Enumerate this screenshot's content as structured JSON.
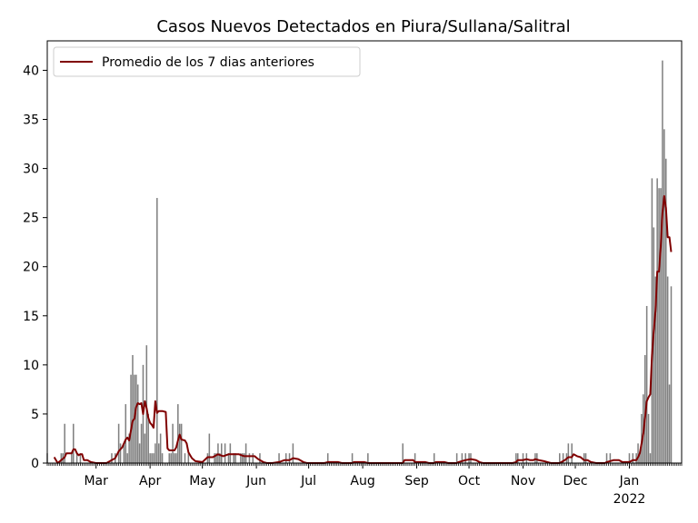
{
  "chart_data": {
    "type": "bar",
    "title": "Casos Nuevos Detectados en Piura/Sullana/Salitral",
    "xlabel": "",
    "ylabel": "",
    "x_start": "2021-02-01",
    "x_end": "2022-01-31",
    "ylim": [
      0,
      43
    ],
    "y_ticks": [
      0,
      5,
      10,
      15,
      20,
      25,
      30,
      35,
      40
    ],
    "x_ticks": [
      {
        "date": "2021-03-01",
        "label": "Mar"
      },
      {
        "date": "2021-04-01",
        "label": "Apr"
      },
      {
        "date": "2021-05-01",
        "label": "May"
      },
      {
        "date": "2021-06-01",
        "label": "Jun"
      },
      {
        "date": "2021-07-01",
        "label": "Jul"
      },
      {
        "date": "2021-08-01",
        "label": "Aug"
      },
      {
        "date": "2021-09-01",
        "label": "Sep"
      },
      {
        "date": "2021-10-01",
        "label": "Oct"
      },
      {
        "date": "2021-11-01",
        "label": "Nov"
      },
      {
        "date": "2021-12-01",
        "label": "Dec"
      },
      {
        "date": "2022-01-01",
        "label": "Jan\n2022"
      }
    ],
    "legend_position": "top-left",
    "grid": false,
    "colors": {
      "bars": "#808080",
      "line": "#800000"
    },
    "series": [
      {
        "type": "bar",
        "points": [
          [
            "2021-02-01",
            1
          ],
          [
            "2021-02-09",
            1
          ],
          [
            "2021-02-10",
            1
          ],
          [
            "2021-02-11",
            4
          ],
          [
            "2021-02-15",
            1
          ],
          [
            "2021-02-16",
            4
          ],
          [
            "2021-02-18",
            1
          ],
          [
            "2021-02-20",
            1
          ],
          [
            "2021-03-10",
            1
          ],
          [
            "2021-03-12",
            1
          ],
          [
            "2021-03-14",
            4
          ],
          [
            "2021-03-15",
            2
          ],
          [
            "2021-03-17",
            2
          ],
          [
            "2021-03-18",
            6
          ],
          [
            "2021-03-19",
            1
          ],
          [
            "2021-03-20",
            3
          ],
          [
            "2021-03-21",
            9
          ],
          [
            "2021-03-22",
            11
          ],
          [
            "2021-03-23",
            9
          ],
          [
            "2021-03-24",
            9
          ],
          [
            "2021-03-25",
            8
          ],
          [
            "2021-03-26",
            2
          ],
          [
            "2021-03-27",
            4
          ],
          [
            "2021-03-28",
            10
          ],
          [
            "2021-03-29",
            3
          ],
          [
            "2021-03-30",
            12
          ],
          [
            "2021-03-31",
            5
          ],
          [
            "2021-04-01",
            1
          ],
          [
            "2021-04-02",
            1
          ],
          [
            "2021-04-03",
            1
          ],
          [
            "2021-04-04",
            2
          ],
          [
            "2021-04-05",
            27
          ],
          [
            "2021-04-06",
            2
          ],
          [
            "2021-04-07",
            3
          ],
          [
            "2021-04-08",
            1
          ],
          [
            "2021-04-12",
            1
          ],
          [
            "2021-04-13",
            1
          ],
          [
            "2021-04-14",
            4
          ],
          [
            "2021-04-15",
            1
          ],
          [
            "2021-04-16",
            1
          ],
          [
            "2021-04-17",
            6
          ],
          [
            "2021-04-18",
            4
          ],
          [
            "2021-04-19",
            4
          ],
          [
            "2021-04-21",
            1
          ],
          [
            "2021-04-23",
            1
          ],
          [
            "2021-05-04",
            1
          ],
          [
            "2021-05-05",
            3
          ],
          [
            "2021-05-08",
            1
          ],
          [
            "2021-05-09",
            1
          ],
          [
            "2021-05-10",
            2
          ],
          [
            "2021-05-11",
            1
          ],
          [
            "2021-05-12",
            2
          ],
          [
            "2021-05-14",
            2
          ],
          [
            "2021-05-16",
            1
          ],
          [
            "2021-05-17",
            2
          ],
          [
            "2021-05-19",
            1
          ],
          [
            "2021-05-20",
            1
          ],
          [
            "2021-05-23",
            1
          ],
          [
            "2021-05-24",
            1
          ],
          [
            "2021-05-25",
            1
          ],
          [
            "2021-05-26",
            2
          ],
          [
            "2021-05-28",
            1
          ],
          [
            "2021-05-30",
            1
          ],
          [
            "2021-06-03",
            1
          ],
          [
            "2021-06-14",
            1
          ],
          [
            "2021-06-18",
            1
          ],
          [
            "2021-06-20",
            1
          ],
          [
            "2021-06-22",
            2
          ],
          [
            "2021-07-12",
            1
          ],
          [
            "2021-07-26",
            1
          ],
          [
            "2021-08-04",
            1
          ],
          [
            "2021-08-24",
            2
          ],
          [
            "2021-08-31",
            1
          ],
          [
            "2021-09-11",
            1
          ],
          [
            "2021-09-24",
            1
          ],
          [
            "2021-09-27",
            1
          ],
          [
            "2021-09-29",
            1
          ],
          [
            "2021-10-01",
            1
          ],
          [
            "2021-10-02",
            1
          ],
          [
            "2021-10-28",
            1
          ],
          [
            "2021-10-29",
            1
          ],
          [
            "2021-11-01",
            1
          ],
          [
            "2021-11-03",
            1
          ],
          [
            "2021-11-08",
            1
          ],
          [
            "2021-11-09",
            1
          ],
          [
            "2021-11-22",
            1
          ],
          [
            "2021-11-24",
            1
          ],
          [
            "2021-11-26",
            1
          ],
          [
            "2021-11-27",
            2
          ],
          [
            "2021-11-29",
            2
          ],
          [
            "2021-12-06",
            1
          ],
          [
            "2021-12-07",
            1
          ],
          [
            "2021-12-19",
            1
          ],
          [
            "2021-12-21",
            1
          ],
          [
            "2022-01-01",
            1
          ],
          [
            "2022-01-03",
            1
          ],
          [
            "2022-01-05",
            1
          ],
          [
            "2022-01-06",
            2
          ],
          [
            "2022-01-07",
            1
          ],
          [
            "2022-01-08",
            5
          ],
          [
            "2022-01-09",
            7
          ],
          [
            "2022-01-10",
            11
          ],
          [
            "2022-01-11",
            16
          ],
          [
            "2022-01-12",
            5
          ],
          [
            "2022-01-13",
            1
          ],
          [
            "2022-01-14",
            29
          ],
          [
            "2022-01-15",
            24
          ],
          [
            "2022-01-16",
            19
          ],
          [
            "2022-01-17",
            29
          ],
          [
            "2022-01-18",
            28
          ],
          [
            "2022-01-19",
            28
          ],
          [
            "2022-01-20",
            41
          ],
          [
            "2022-01-21",
            34
          ],
          [
            "2022-01-22",
            31
          ],
          [
            "2022-01-23",
            19
          ],
          [
            "2022-01-24",
            8
          ],
          [
            "2022-01-25",
            18
          ]
        ]
      },
      {
        "type": "line",
        "name": "Promedio de los 7 dias anteriores",
        "points": [
          [
            "2021-02-05",
            0.6
          ],
          [
            "2021-02-07",
            0
          ],
          [
            "2021-02-09",
            0.3
          ],
          [
            "2021-02-11",
            0.6
          ],
          [
            "2021-02-12",
            1
          ],
          [
            "2021-02-15",
            1
          ],
          [
            "2021-02-16",
            1.4
          ],
          [
            "2021-02-17",
            1.4
          ],
          [
            "2021-02-18",
            1
          ],
          [
            "2021-02-19",
            0.8
          ],
          [
            "2021-02-20",
            0.9
          ],
          [
            "2021-02-21",
            0.9
          ],
          [
            "2021-02-22",
            0.3
          ],
          [
            "2021-02-24",
            0.3
          ],
          [
            "2021-02-26",
            0.1
          ],
          [
            "2021-03-01",
            0
          ],
          [
            "2021-03-07",
            0
          ],
          [
            "2021-03-10",
            0.3
          ],
          [
            "2021-03-12",
            0.5
          ],
          [
            "2021-03-14",
            1.2
          ],
          [
            "2021-03-16",
            1.6
          ],
          [
            "2021-03-18",
            2.4
          ],
          [
            "2021-03-19",
            2.6
          ],
          [
            "2021-03-20",
            2.3
          ],
          [
            "2021-03-21",
            3.3
          ],
          [
            "2021-03-22",
            4.3
          ],
          [
            "2021-03-23",
            4.5
          ],
          [
            "2021-03-24",
            5.7
          ],
          [
            "2021-03-25",
            6.1
          ],
          [
            "2021-03-26",
            6.0
          ],
          [
            "2021-03-27",
            6.1
          ],
          [
            "2021-03-28",
            5.0
          ],
          [
            "2021-03-29",
            6.3
          ],
          [
            "2021-03-30",
            5.6
          ],
          [
            "2021-03-31",
            4.6
          ],
          [
            "2021-04-01",
            4.1
          ],
          [
            "2021-04-02",
            3.9
          ],
          [
            "2021-04-03",
            3.6
          ],
          [
            "2021-04-04",
            6.3
          ],
          [
            "2021-04-05",
            5.1
          ],
          [
            "2021-04-06",
            5.3
          ],
          [
            "2021-04-08",
            5.3
          ],
          [
            "2021-04-10",
            5.2
          ],
          [
            "2021-04-11",
            1.5
          ],
          [
            "2021-04-12",
            1.3
          ],
          [
            "2021-04-14",
            1.3
          ],
          [
            "2021-04-15",
            1.3
          ],
          [
            "2021-04-16",
            1.6
          ],
          [
            "2021-04-17",
            2.3
          ],
          [
            "2021-04-18",
            2.9
          ],
          [
            "2021-04-19",
            2.4
          ],
          [
            "2021-04-21",
            2.3
          ],
          [
            "2021-04-22",
            2.0
          ],
          [
            "2021-04-23",
            1.1
          ],
          [
            "2021-04-25",
            0.5
          ],
          [
            "2021-04-27",
            0.2
          ],
          [
            "2021-05-01",
            0.1
          ],
          [
            "2021-05-04",
            0.6
          ],
          [
            "2021-05-07",
            0.6
          ],
          [
            "2021-05-10",
            0.9
          ],
          [
            "2021-05-13",
            0.7
          ],
          [
            "2021-05-16",
            0.9
          ],
          [
            "2021-05-19",
            0.9
          ],
          [
            "2021-05-22",
            0.9
          ],
          [
            "2021-05-25",
            0.7
          ],
          [
            "2021-05-28",
            0.7
          ],
          [
            "2021-05-31",
            0.7
          ],
          [
            "2021-06-02",
            0.4
          ],
          [
            "2021-06-05",
            0.1
          ],
          [
            "2021-06-07",
            0
          ],
          [
            "2021-06-10",
            0
          ],
          [
            "2021-06-14",
            0.1
          ],
          [
            "2021-06-17",
            0.3
          ],
          [
            "2021-06-20",
            0.3
          ],
          [
            "2021-06-22",
            0.5
          ],
          [
            "2021-06-25",
            0.4
          ],
          [
            "2021-06-28",
            0.1
          ],
          [
            "2021-06-30",
            0
          ],
          [
            "2021-07-10",
            0
          ],
          [
            "2021-07-12",
            0.1
          ],
          [
            "2021-07-18",
            0.1
          ],
          [
            "2021-07-20",
            0
          ],
          [
            "2021-07-26",
            0
          ],
          [
            "2021-07-27",
            0.1
          ],
          [
            "2021-08-02",
            0.1
          ],
          [
            "2021-08-04",
            0
          ],
          [
            "2021-08-10",
            0
          ],
          [
            "2021-08-24",
            0
          ],
          [
            "2021-08-25",
            0.3
          ],
          [
            "2021-08-30",
            0.3
          ],
          [
            "2021-08-31",
            0.1
          ],
          [
            "2021-09-03",
            0.1
          ],
          [
            "2021-09-06",
            0.1
          ],
          [
            "2021-09-08",
            0
          ],
          [
            "2021-09-11",
            0
          ],
          [
            "2021-09-12",
            0.1
          ],
          [
            "2021-09-17",
            0.1
          ],
          [
            "2021-09-19",
            0
          ],
          [
            "2021-09-24",
            0
          ],
          [
            "2021-09-25",
            0.1
          ],
          [
            "2021-09-27",
            0.2
          ],
          [
            "2021-09-29",
            0.3
          ],
          [
            "2021-10-02",
            0.4
          ],
          [
            "2021-10-05",
            0.3
          ],
          [
            "2021-10-07",
            0.1
          ],
          [
            "2021-10-09",
            0
          ],
          [
            "2021-10-26",
            0
          ],
          [
            "2021-10-28",
            0.1
          ],
          [
            "2021-10-29",
            0.3
          ],
          [
            "2021-11-01",
            0.3
          ],
          [
            "2021-11-03",
            0.4
          ],
          [
            "2021-11-05",
            0.3
          ],
          [
            "2021-11-07",
            0.3
          ],
          [
            "2021-11-08",
            0.4
          ],
          [
            "2021-11-10",
            0.3
          ],
          [
            "2021-11-13",
            0.2
          ],
          [
            "2021-11-15",
            0.1
          ],
          [
            "2021-11-17",
            0
          ],
          [
            "2021-11-22",
            0
          ],
          [
            "2021-11-23",
            0.1
          ],
          [
            "2021-11-25",
            0.3
          ],
          [
            "2021-11-27",
            0.6
          ],
          [
            "2021-11-29",
            0.6
          ],
          [
            "2021-11-30",
            0.9
          ],
          [
            "2021-12-02",
            0.7
          ],
          [
            "2021-12-04",
            0.6
          ],
          [
            "2021-12-06",
            0.3
          ],
          [
            "2021-12-08",
            0.3
          ],
          [
            "2021-12-10",
            0.1
          ],
          [
            "2021-12-13",
            0
          ],
          [
            "2021-12-18",
            0
          ],
          [
            "2021-12-19",
            0.1
          ],
          [
            "2021-12-23",
            0.3
          ],
          [
            "2021-12-26",
            0.3
          ],
          [
            "2021-12-28",
            0.1
          ],
          [
            "2022-01-01",
            0.1
          ],
          [
            "2022-01-03",
            0.3
          ],
          [
            "2022-01-05",
            0.3
          ],
          [
            "2022-01-06",
            0.6
          ],
          [
            "2022-01-07",
            1
          ],
          [
            "2022-01-08",
            2
          ],
          [
            "2022-01-09",
            3
          ],
          [
            "2022-01-10",
            4.6
          ],
          [
            "2022-01-11",
            6.3
          ],
          [
            "2022-01-12",
            6.7
          ],
          [
            "2022-01-13",
            7.0
          ],
          [
            "2022-01-14",
            11
          ],
          [
            "2022-01-15",
            13.5
          ],
          [
            "2022-01-16",
            15.5
          ],
          [
            "2022-01-17",
            19.5
          ],
          [
            "2022-01-18",
            19.5
          ],
          [
            "2022-01-19",
            22
          ],
          [
            "2022-01-20",
            25.5
          ],
          [
            "2022-01-21",
            27.2
          ],
          [
            "2022-01-22",
            26
          ],
          [
            "2022-01-23",
            23
          ],
          [
            "2022-01-24",
            23
          ],
          [
            "2022-01-25",
            21.5
          ]
        ]
      }
    ]
  }
}
